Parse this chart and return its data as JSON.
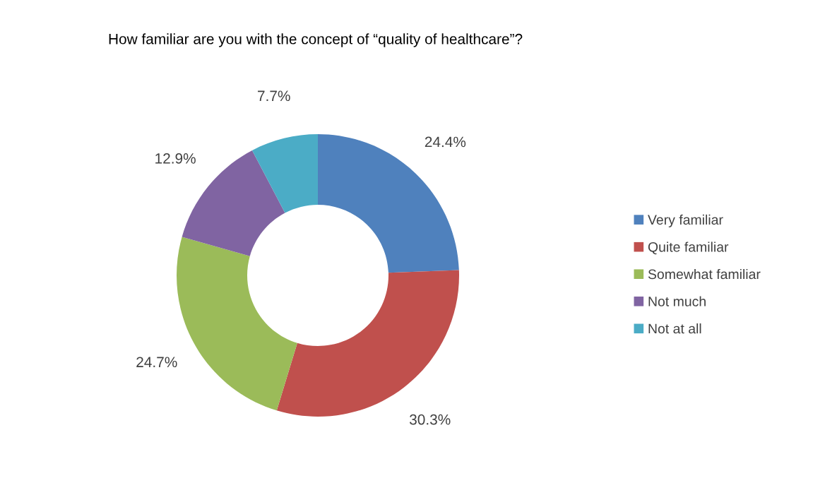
{
  "chart_data": {
    "type": "donut",
    "title": "How familiar are you with the concept of “quality of healthcare”?",
    "categories": [
      "Very familiar",
      "Quite familiar",
      "Somewhat familiar",
      "Not much",
      "Not at all"
    ],
    "values": [
      24.4,
      30.3,
      24.7,
      12.9,
      7.7
    ],
    "colors": [
      "#4f81bd",
      "#c0504d",
      "#9bbb59",
      "#8064a2",
      "#4bacc6"
    ],
    "value_labels": [
      "24.4%",
      "30.3%",
      "24.7%",
      "12.9%",
      "7.7%"
    ],
    "legend": "right"
  }
}
